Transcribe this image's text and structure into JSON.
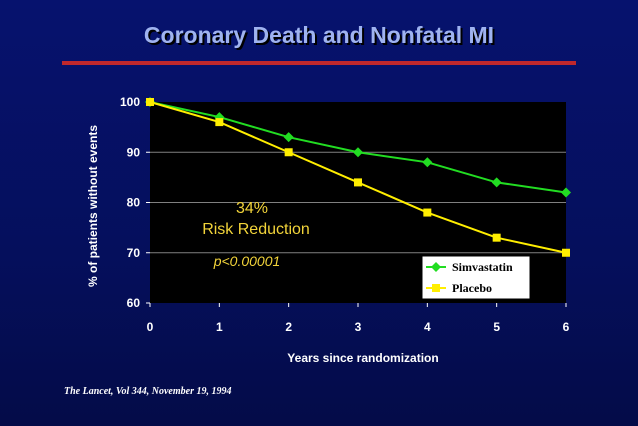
{
  "chart_data": {
    "type": "line",
    "title": "Coronary Death and Nonfatal MI",
    "xlabel": "Years since randomization",
    "ylabel": "% of patients without events",
    "x": [
      0,
      1,
      2,
      3,
      4,
      5,
      6
    ],
    "xlim": [
      0,
      6
    ],
    "ylim": [
      60,
      100
    ],
    "yticks": [
      60,
      70,
      80,
      90,
      100
    ],
    "series": [
      {
        "name": "Simvastatin",
        "color": "#22dd22",
        "marker": "diamond",
        "values": [
          100,
          97,
          93,
          90,
          88,
          84,
          82
        ]
      },
      {
        "name": "Placebo",
        "color": "#ffee00",
        "marker": "square",
        "values": [
          100,
          96,
          90,
          84,
          78,
          73,
          70
        ]
      }
    ],
    "annotations": {
      "percent": "34%",
      "reduction": "Risk Reduction",
      "pvalue": "p<0.00001"
    },
    "legend": "bottom-right"
  },
  "citation": "The Lancet, Vol 344, November 19, 1994",
  "colors": {
    "plot_bg": "#000000",
    "title": "#9fb3f0",
    "rule": "#c0282c",
    "annotation": "#f2d43a"
  }
}
